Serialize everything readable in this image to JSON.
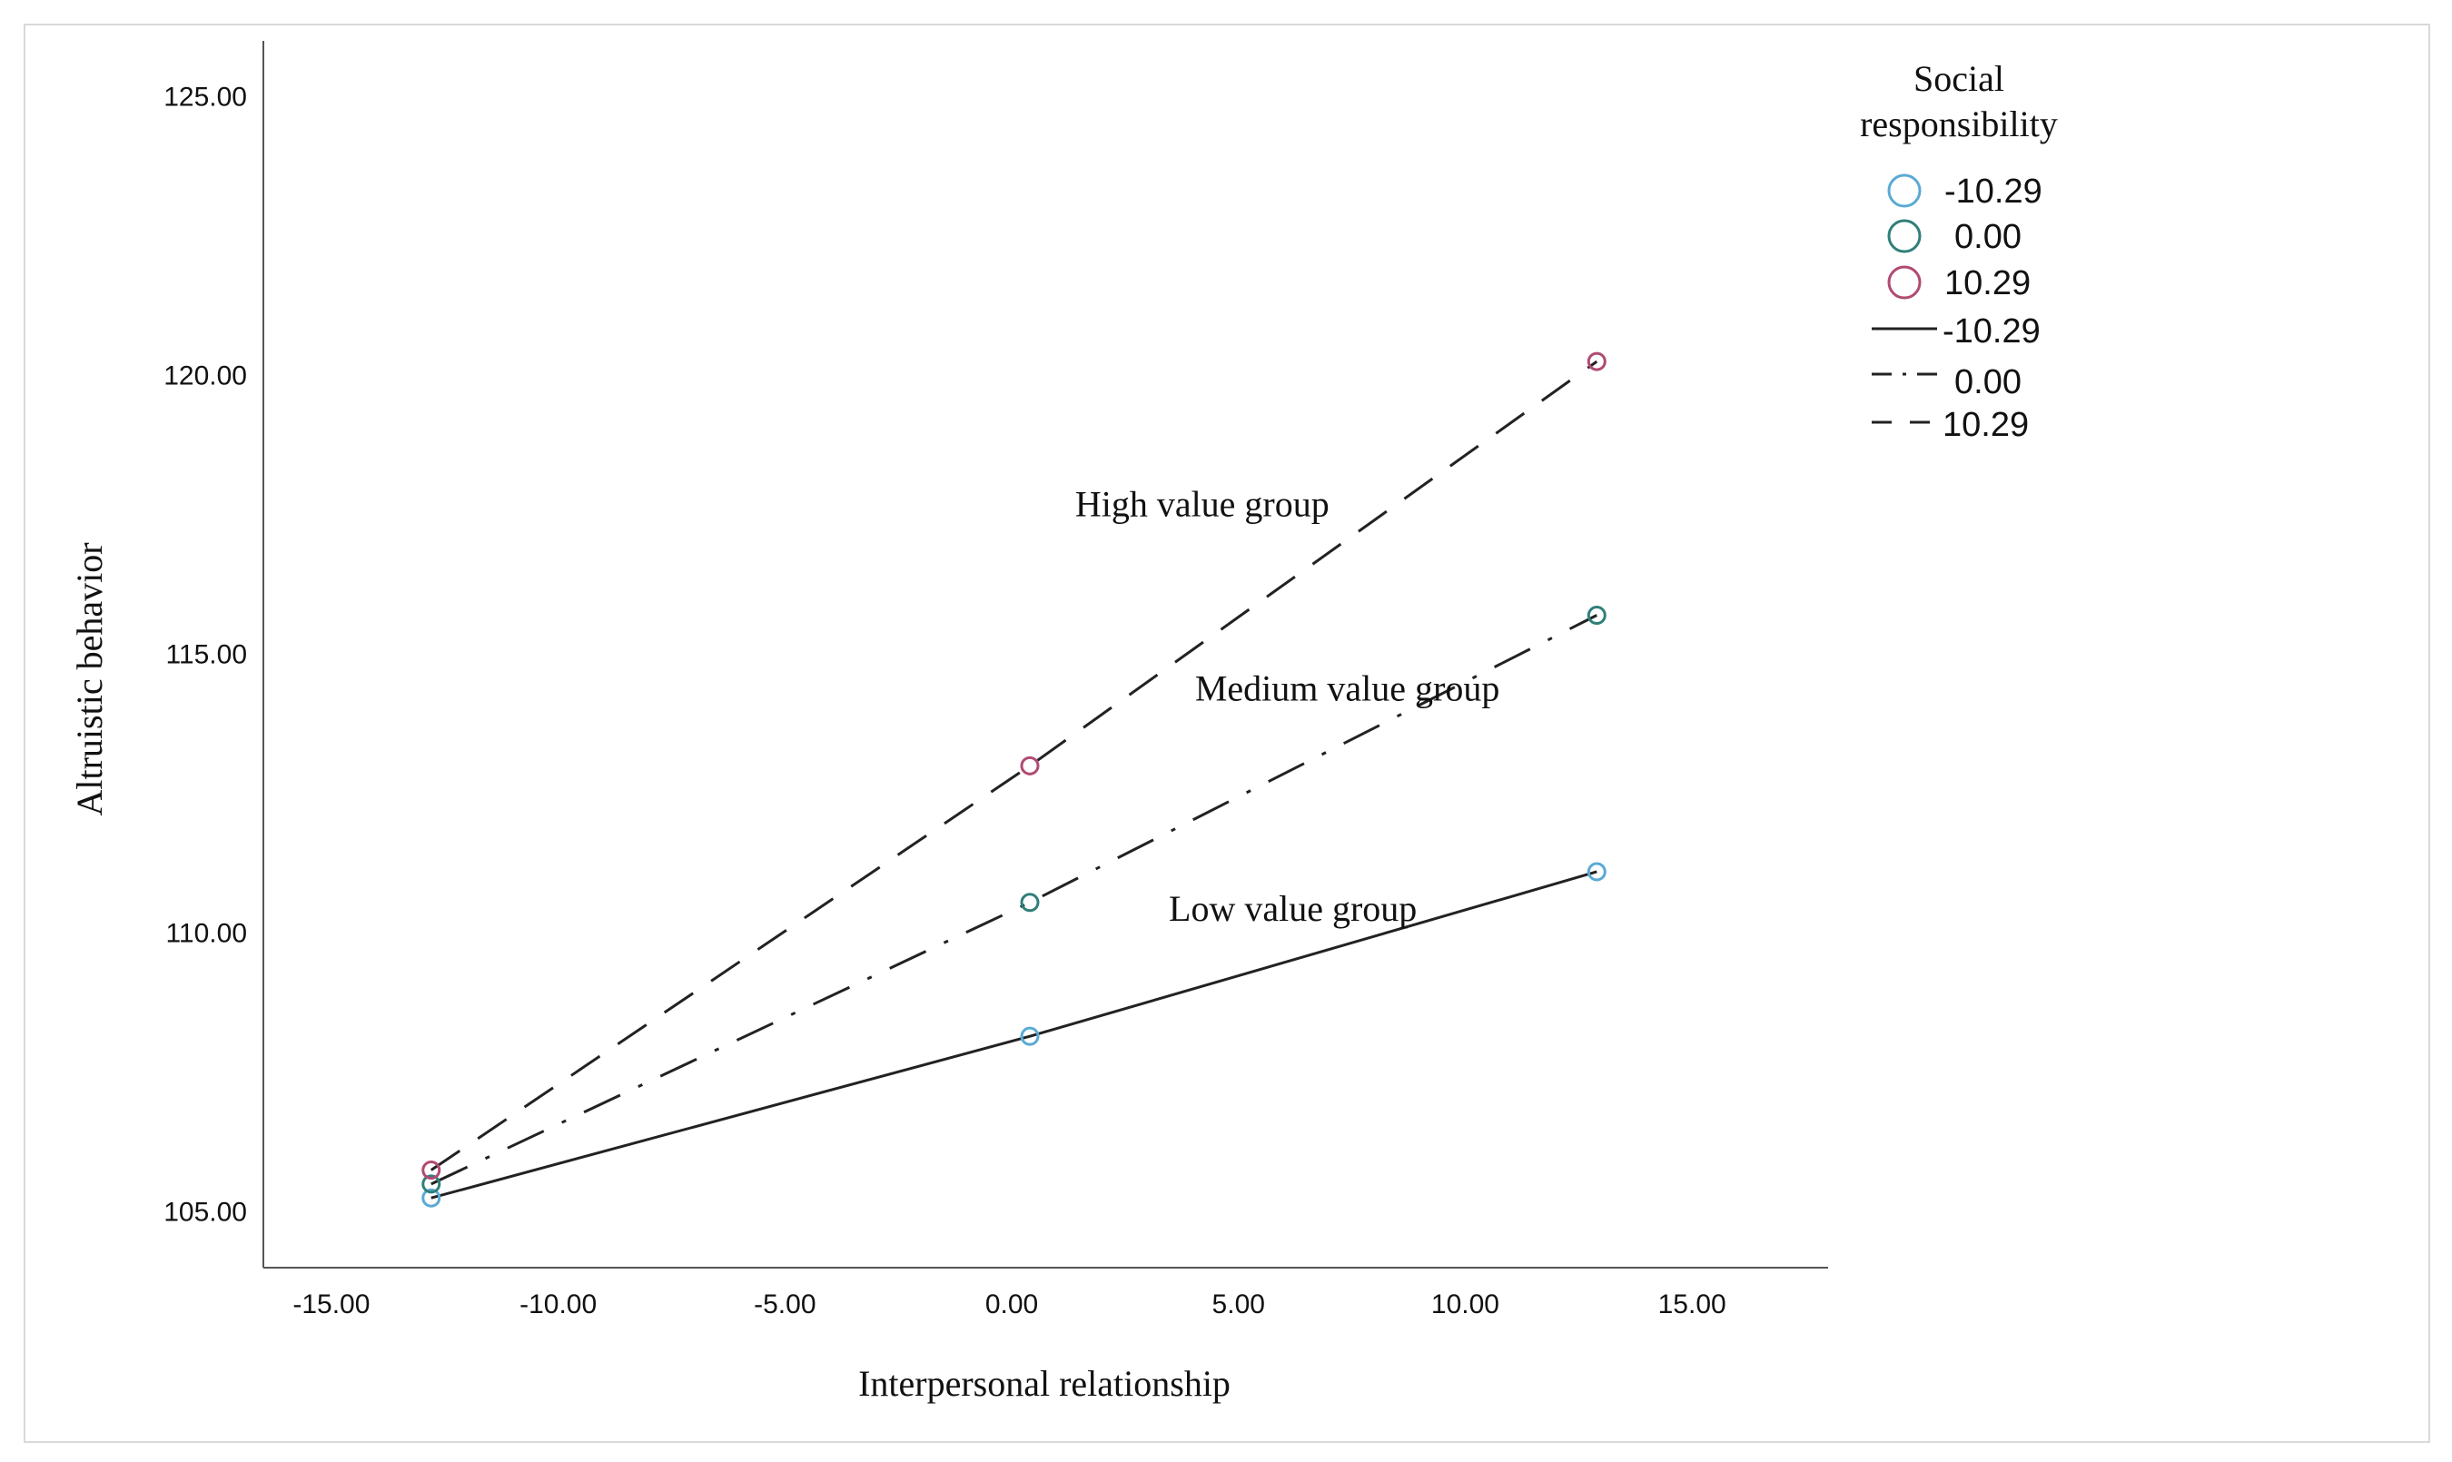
{
  "chart_data": {
    "type": "line",
    "xlabel": "Interpersonal relationship",
    "ylabel": "Altruistic behavior",
    "xlim": [
      -16.5,
      18.0
    ],
    "ylim": [
      104.0,
      126.0
    ],
    "x_ticks": [
      -15,
      -10,
      -5,
      0,
      5,
      10,
      15
    ],
    "x_tick_labels": [
      "-15.00",
      "-10.00",
      "-5.00",
      "0.00",
      "5.00",
      "10.00",
      "15.00"
    ],
    "y_ticks": [
      105,
      110,
      115,
      120,
      125
    ],
    "y_tick_labels": [
      "105.00",
      "110.00",
      "115.00",
      "120.00",
      "125.00"
    ],
    "grid": false,
    "x": [
      -12.8,
      0.4,
      12.9
    ],
    "series": [
      {
        "name": "-10.29",
        "group": "Low value group",
        "values": [
          105.25,
          108.15,
          111.1
        ],
        "marker_color": "#5aaad4",
        "line_style": "solid"
      },
      {
        "name": "0.00",
        "group": "Medium value group",
        "values": [
          105.5,
          110.55,
          115.7
        ],
        "marker_color": "#2f7f7a",
        "line_style": "dashdot"
      },
      {
        "name": "10.29",
        "group": "High value group",
        "values": [
          105.75,
          113.0,
          120.25
        ],
        "marker_color": "#b04a72",
        "line_style": "dashed"
      }
    ],
    "annotations": [
      {
        "text": "High value group",
        "x": 4.2,
        "y": 117.7
      },
      {
        "text": "Medium value group",
        "x": 7.4,
        "y": 114.4
      },
      {
        "text": "Low value group",
        "x": 6.2,
        "y": 110.45
      }
    ],
    "legend": {
      "title_lines": [
        "Social",
        "responsibility"
      ],
      "position": "top-right",
      "marker_entries": [
        "-10.29",
        "0.00",
        "10.29"
      ],
      "line_entries": [
        "-10.29",
        "0.00",
        "10.29"
      ]
    }
  }
}
